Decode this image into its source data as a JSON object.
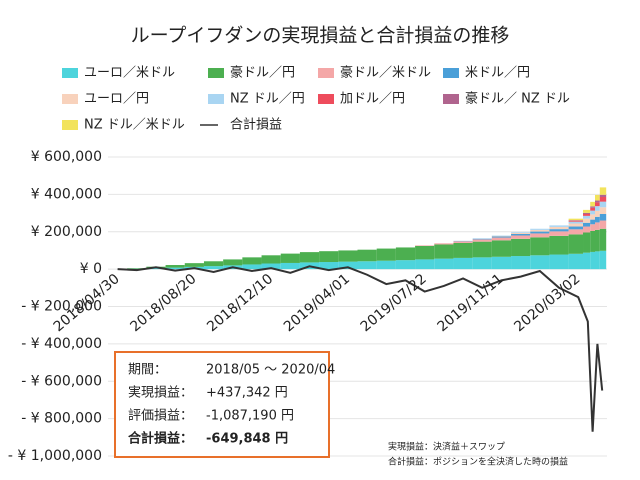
{
  "chart_data": {
    "type": "stacked-bar-line",
    "title": "ループイフダンの実現損益と合計損益の推移",
    "x": [
      "2018/04/30",
      "2018/05/28",
      "2018/06/25",
      "2018/07/23",
      "2018/08/20",
      "2018/09/17",
      "2018/10/15",
      "2018/11/12",
      "2018/12/10",
      "2019/01/07",
      "2019/02/04",
      "2019/03/04",
      "2019/04/01",
      "2019/04/29",
      "2019/05/27",
      "2019/06/24",
      "2019/07/22",
      "2019/08/19",
      "2019/09/16",
      "2019/10/14",
      "2019/11/11",
      "2019/12/09",
      "2020/01/06",
      "2020/02/03",
      "2020/03/02",
      "2020/03/16",
      "2020/03/23",
      "2020/03/30",
      "2020/04/06"
    ],
    "xlim": [
      "2018/04/16",
      "2020/04/13"
    ],
    "xticks": [
      "2018/04/30",
      "2018/08/20",
      "2018/12/10",
      "2019/04/01",
      "2019/07/22",
      "2019/11/11",
      "2020/03/02"
    ],
    "ylim": [
      -1000000,
      600000
    ],
    "yticks": [
      {
        "value": 600000,
        "label": "¥ 600,000"
      },
      {
        "value": 400000,
        "label": "¥ 400,000"
      },
      {
        "value": 200000,
        "label": "¥ 200,000"
      },
      {
        "value": 0,
        "label": "¥ 0"
      },
      {
        "value": -200000,
        "label": "- ¥ 200,000"
      },
      {
        "value": -400000,
        "label": "- ¥ 400,000"
      },
      {
        "value": -600000,
        "label": "- ¥ 600,000"
      },
      {
        "value": -800000,
        "label": "- ¥ 800,000"
      },
      {
        "value": -1000000,
        "label": "- ¥ 1,000,000"
      }
    ],
    "grid": true,
    "series": [
      {
        "name": "ユーロ／米ドル",
        "color": "#4dd4dc",
        "values": [
          0,
          2000,
          5000,
          8000,
          12000,
          16000,
          20000,
          25000,
          30000,
          33000,
          36000,
          38000,
          40000,
          42000,
          45000,
          48000,
          52000,
          56000,
          60000,
          63000,
          66000,
          70000,
          74000,
          78000,
          82000,
          88000,
          92000,
          95000,
          98000
        ]
      },
      {
        "name": "豪ドル／円",
        "color": "#4caf50",
        "values": [
          0,
          3000,
          8000,
          14000,
          20000,
          26000,
          32000,
          38000,
          44000,
          50000,
          55000,
          58000,
          60000,
          62000,
          65000,
          68000,
          72000,
          76000,
          80000,
          84000,
          88000,
          92000,
          96000,
          100000,
          104000,
          108000,
          112000,
          115000,
          118000
        ]
      },
      {
        "name": "豪ドル／米ドル",
        "color": "#f4a7a7",
        "values": [
          0,
          0,
          0,
          0,
          0,
          0,
          0,
          0,
          0,
          0,
          0,
          0,
          0,
          0,
          0,
          0,
          3000,
          6000,
          9000,
          12000,
          15000,
          18000,
          21000,
          24000,
          27000,
          32000,
          36000,
          40000,
          44000
        ]
      },
      {
        "name": "米ドル／円",
        "color": "#4a9fd8",
        "values": [
          0,
          0,
          0,
          0,
          0,
          0,
          0,
          0,
          0,
          0,
          0,
          0,
          0,
          0,
          0,
          0,
          0,
          0,
          2000,
          4000,
          6000,
          8000,
          10000,
          12000,
          15000,
          20000,
          25000,
          30000,
          35000
        ]
      },
      {
        "name": "ユーロ／円",
        "color": "#f8d2bc",
        "values": [
          0,
          0,
          0,
          0,
          0,
          0,
          0,
          0,
          0,
          0,
          0,
          0,
          0,
          0,
          0,
          0,
          0,
          0,
          0,
          0,
          3000,
          6000,
          9000,
          12000,
          16000,
          22000,
          28000,
          32000,
          36000
        ]
      },
      {
        "name": "NZ ドル／円",
        "color": "#a9d5f2",
        "values": [
          0,
          0,
          0,
          0,
          0,
          0,
          0,
          0,
          0,
          0,
          0,
          0,
          0,
          0,
          0,
          0,
          0,
          0,
          0,
          0,
          2000,
          4000,
          6000,
          8000,
          10000,
          15000,
          20000,
          25000,
          30000
        ]
      },
      {
        "name": "加ドル／円",
        "color": "#ee4c5c",
        "values": [
          0,
          0,
          0,
          0,
          0,
          0,
          0,
          0,
          0,
          0,
          0,
          0,
          0,
          0,
          0,
          0,
          0,
          0,
          0,
          0,
          0,
          0,
          0,
          0,
          5000,
          10000,
          15000,
          20000,
          25000
        ]
      },
      {
        "name": "豪ドル／ NZ ドル",
        "color": "#b0648e",
        "values": [
          0,
          0,
          0,
          0,
          0,
          0,
          0,
          0,
          0,
          0,
          0,
          0,
          0,
          0,
          0,
          0,
          0,
          0,
          0,
          0,
          0,
          0,
          0,
          0,
          3000,
          6000,
          8000,
          10000,
          12000
        ]
      },
      {
        "name": "NZ ドル／米ドル",
        "color": "#f2e35c",
        "values": [
          0,
          0,
          0,
          0,
          0,
          0,
          0,
          0,
          0,
          0,
          0,
          0,
          0,
          0,
          0,
          0,
          0,
          0,
          0,
          0,
          0,
          0,
          0,
          0,
          8000,
          16000,
          24000,
          30000,
          39342
        ]
      }
    ],
    "line": {
      "name": "合計損益",
      "color": "#333333",
      "values": [
        0,
        -5000,
        10000,
        -8000,
        5000,
        -15000,
        10000,
        -10000,
        5000,
        -20000,
        15000,
        -5000,
        10000,
        -30000,
        -80000,
        -60000,
        -120000,
        -90000,
        -50000,
        -100000,
        -60000,
        -40000,
        -10000,
        -100000,
        -150000,
        -280000,
        -870000,
        -400000,
        -649848
      ]
    },
    "info_box": [
      {
        "label": "期間：",
        "value": "2018/05 ～ 2020/04"
      },
      {
        "label": "実現損益：",
        "value": "+437,342 円"
      },
      {
        "label": "評価損益：",
        "value": "-1,087,190 円"
      },
      {
        "label": "合計損益：",
        "value": "-649,848 円"
      }
    ],
    "notes": [
      "実現損益：決済益＋スワップ",
      "合計損益：ポジションを全決済した時の損益"
    ]
  }
}
